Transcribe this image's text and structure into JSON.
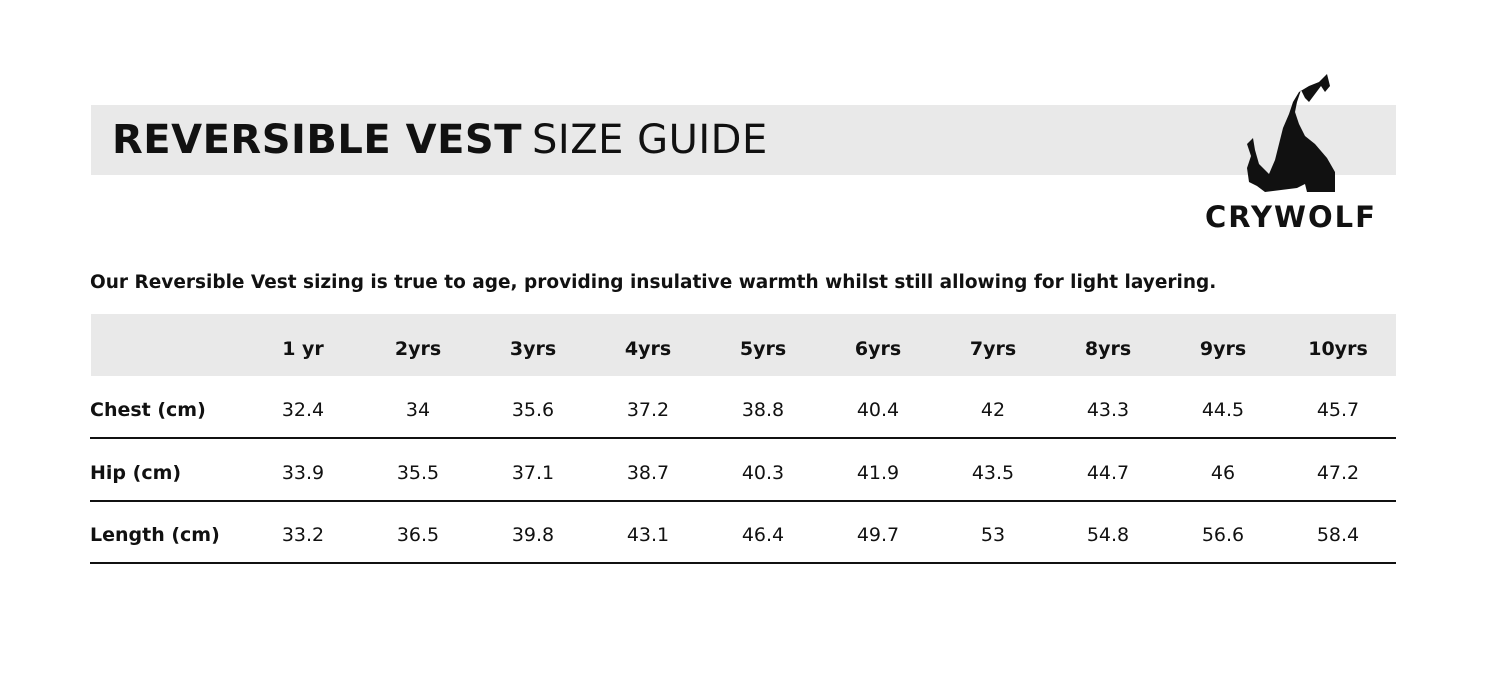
{
  "header": {
    "title_bold": "REVERSIBLE VEST",
    "title_light": "SIZE GUIDE",
    "brand": "CRYWOLF"
  },
  "intro": "Our Reversible Vest sizing is true to age, providing insulative warmth whilst still allowing for light layering.",
  "table": {
    "columns": [
      "1 yr",
      "2yrs",
      "3yrs",
      "4yrs",
      "5yrs",
      "6yrs",
      "7yrs",
      "8yrs",
      "9yrs",
      "10yrs"
    ],
    "rows": [
      {
        "label": "Chest (cm)",
        "values": [
          "32.4",
          "34",
          "35.6",
          "37.2",
          "38.8",
          "40.4",
          "42",
          "43.3",
          "44.5",
          "45.7"
        ]
      },
      {
        "label": "Hip (cm)",
        "values": [
          "33.9",
          "35.5",
          "37.1",
          "38.7",
          "40.3",
          "41.9",
          "43.5",
          "44.7",
          "46",
          "47.2"
        ]
      },
      {
        "label": "Length (cm)",
        "values": [
          "33.2",
          "36.5",
          "39.8",
          "43.1",
          "46.4",
          "49.7",
          "53",
          "54.8",
          "56.6",
          "58.4"
        ]
      }
    ]
  }
}
